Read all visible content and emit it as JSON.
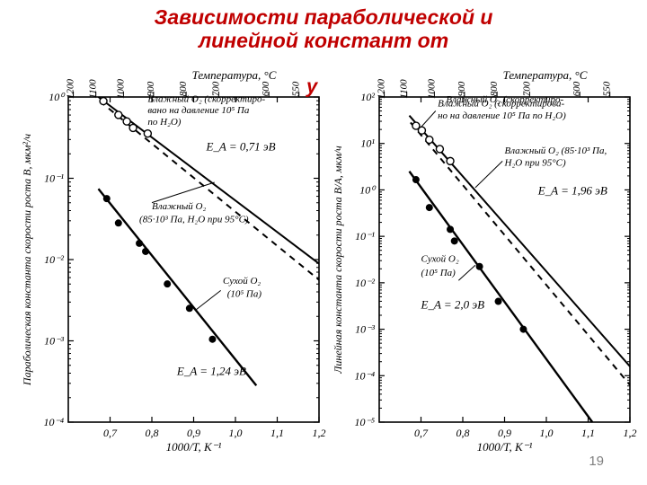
{
  "title_color": "#c00000",
  "title_fontsize": 23,
  "title_line1": "Зависимости параболической и",
  "title_line2": "линейной констант от",
  "partial_title_fragment": "у",
  "page_number": "19",
  "shared": {
    "top_axis_label": "Температура, °С",
    "bottom_axis_label": "1000/T, K⁻¹",
    "top_ticks": [
      "1200",
      "1100",
      "1000",
      "900",
      "800",
      "700",
      "600",
      "550"
    ],
    "top_tick_fontsize": 11,
    "label_fontsize": 13,
    "frame_color": "#000000",
    "grid_color": "#000000",
    "wet_label_a": "Влажный O₂ (скорректиро-",
    "wet_label_b_left": "вано на давление 10⁵ Па",
    "wet_label_b_right": "но на давление 10⁵ Па по H₂O)",
    "wet_label_c": "по H₂O)",
    "wet2_label_a": "Влажный O₂",
    "wet2_label_b_left": "(85·10³ Па, H₂O при 95°С)",
    "wet2_label_b_right": "(85·10³ Па,",
    "wet2_label_c_right": "H₂O при 95°С)",
    "dry_label_a": "Сухой O₂",
    "dry_label_b": "(10⁵ Па)"
  },
  "left": {
    "y_axis_label": "Параболическая константа скорости роста B, мкм²/ч",
    "x_range": [
      0.6,
      1.2
    ],
    "x_ticks": [
      "0,7",
      "0,8",
      "0,9",
      "1,0",
      "1,1",
      "1,2"
    ],
    "y_log_range": [
      -4,
      0
    ],
    "y_ticks": [
      "10⁻⁴",
      "10⁻³",
      "10⁻²",
      "10⁻¹",
      "10⁰"
    ],
    "E_upper": "E_A = 0,71 эВ",
    "E_lower": "E_A = 1,24 эВ",
    "series": {
      "wet_solid": {
        "pts": [
          [
            0.672,
            0.0
          ],
          [
            1.2,
            -2.05
          ]
        ],
        "style": "solid",
        "width": 2
      },
      "wet_dashed": {
        "pts": [
          [
            0.675,
            -0.05
          ],
          [
            1.2,
            -2.25
          ]
        ],
        "style": "dashed",
        "width": 2
      },
      "wet_open_markers": [
        [
          0.684,
          -0.05
        ],
        [
          0.72,
          -0.22
        ],
        [
          0.74,
          -0.3
        ],
        [
          0.755,
          -0.38
        ],
        [
          0.79,
          -0.45
        ]
      ],
      "dry_solid": {
        "pts": [
          [
            0.672,
            -1.13
          ],
          [
            1.05,
            -3.55
          ]
        ],
        "style": "solid",
        "width": 2.4
      },
      "dry_closed_markers": [
        [
          0.692,
          -1.25
        ],
        [
          0.72,
          -1.55
        ],
        [
          0.77,
          -1.8
        ],
        [
          0.785,
          -1.9
        ],
        [
          0.837,
          -2.3
        ],
        [
          0.89,
          -2.6
        ],
        [
          0.945,
          -2.98
        ]
      ]
    }
  },
  "right": {
    "y_axis_label": "Линейная константа скорости роста B/A, мкм/ч",
    "x_range": [
      0.6,
      1.2
    ],
    "x_ticks": [
      "0,7",
      "0,8",
      "0,9",
      "1,0",
      "1,1",
      "1,2"
    ],
    "y_log_range": [
      -5,
      2
    ],
    "y_ticks": [
      "10⁻⁵",
      "10⁻⁴",
      "10⁻³",
      "10⁻²",
      "10⁻¹",
      "10⁰",
      "10¹",
      "10²"
    ],
    "E_upper": "E_A = 1,96 эВ",
    "E_lower": "E_A = 2,0 эВ",
    "series": {
      "wet_solid": {
        "pts": [
          [
            0.672,
            1.6
          ],
          [
            1.2,
            -3.8
          ]
        ],
        "style": "solid",
        "width": 2
      },
      "wet_dashed": {
        "pts": [
          [
            0.675,
            1.45
          ],
          [
            1.2,
            -4.2
          ]
        ],
        "style": "dashed",
        "width": 2
      },
      "wet_open_markers": [
        [
          0.688,
          1.38
        ],
        [
          0.702,
          1.28
        ],
        [
          0.72,
          1.08
        ],
        [
          0.745,
          0.88
        ],
        [
          0.77,
          0.62
        ]
      ],
      "dry_solid": {
        "pts": [
          [
            0.672,
            0.4
          ],
          [
            1.11,
            -5.0
          ]
        ],
        "style": "solid",
        "width": 2.4
      },
      "dry_closed_markers": [
        [
          0.688,
          0.22
        ],
        [
          0.72,
          -0.38
        ],
        [
          0.77,
          -0.85
        ],
        [
          0.78,
          -1.1
        ],
        [
          0.84,
          -1.65
        ],
        [
          0.885,
          -2.4
        ],
        [
          0.945,
          -3.0
        ]
      ]
    }
  }
}
